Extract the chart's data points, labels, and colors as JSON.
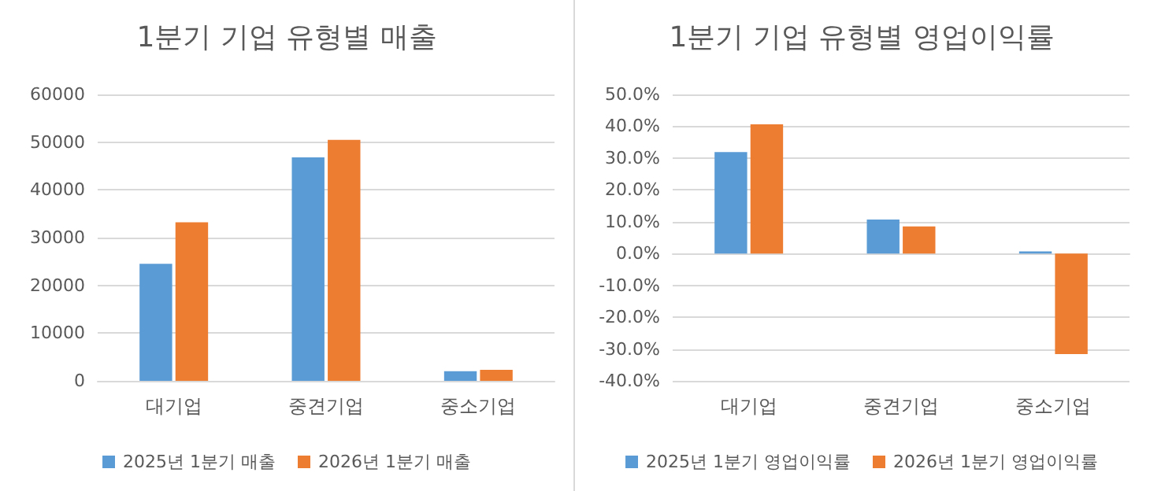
{
  "chart_data": [
    {
      "type": "bar",
      "title": "1분기 기업 유형별 매출",
      "categories": [
        "대기업",
        "중견기업",
        "중소기업"
      ],
      "series": [
        {
          "name": "2025년 1분기 매출",
          "color": "#5b9bd5",
          "values": [
            24500,
            46800,
            2000
          ]
        },
        {
          "name": "2026년 1분기 매출",
          "color": "#ed7d31",
          "values": [
            33200,
            50500,
            2300
          ]
        }
      ],
      "ylim": [
        0,
        60000
      ],
      "yticks": [
        0,
        10000,
        20000,
        30000,
        40000,
        50000,
        60000
      ],
      "grid": "y",
      "legend": "bottom"
    },
    {
      "type": "bar",
      "title": "1분기 기업 유형별 영업이익률",
      "categories": [
        "대기업",
        "중견기업",
        "중소기업"
      ],
      "series": [
        {
          "name": "2025년 1분기 영업이익률",
          "color": "#5b9bd5",
          "values": [
            31.9,
            10.7,
            0.7
          ]
        },
        {
          "name": "2026년 1분기 영업이익률",
          "color": "#ed7d31",
          "values": [
            40.6,
            8.5,
            -31.6
          ]
        }
      ],
      "ylim": [
        -40,
        50
      ],
      "yticks": [
        {
          "value": -40,
          "label": "-40.0%"
        },
        {
          "value": -30,
          "label": "-30.0%"
        },
        {
          "value": -20,
          "label": "-20.0%"
        },
        {
          "value": -10,
          "label": "-10.0%"
        },
        {
          "value": 0,
          "label": "0.0%"
        },
        {
          "value": 10,
          "label": "10.0%"
        },
        {
          "value": 20,
          "label": "20.0%"
        },
        {
          "value": 30,
          "label": "30.0%"
        },
        {
          "value": 40,
          "label": "40.0%"
        },
        {
          "value": 50,
          "label": "50.0%"
        }
      ],
      "grid": "y",
      "legend": "bottom"
    }
  ]
}
